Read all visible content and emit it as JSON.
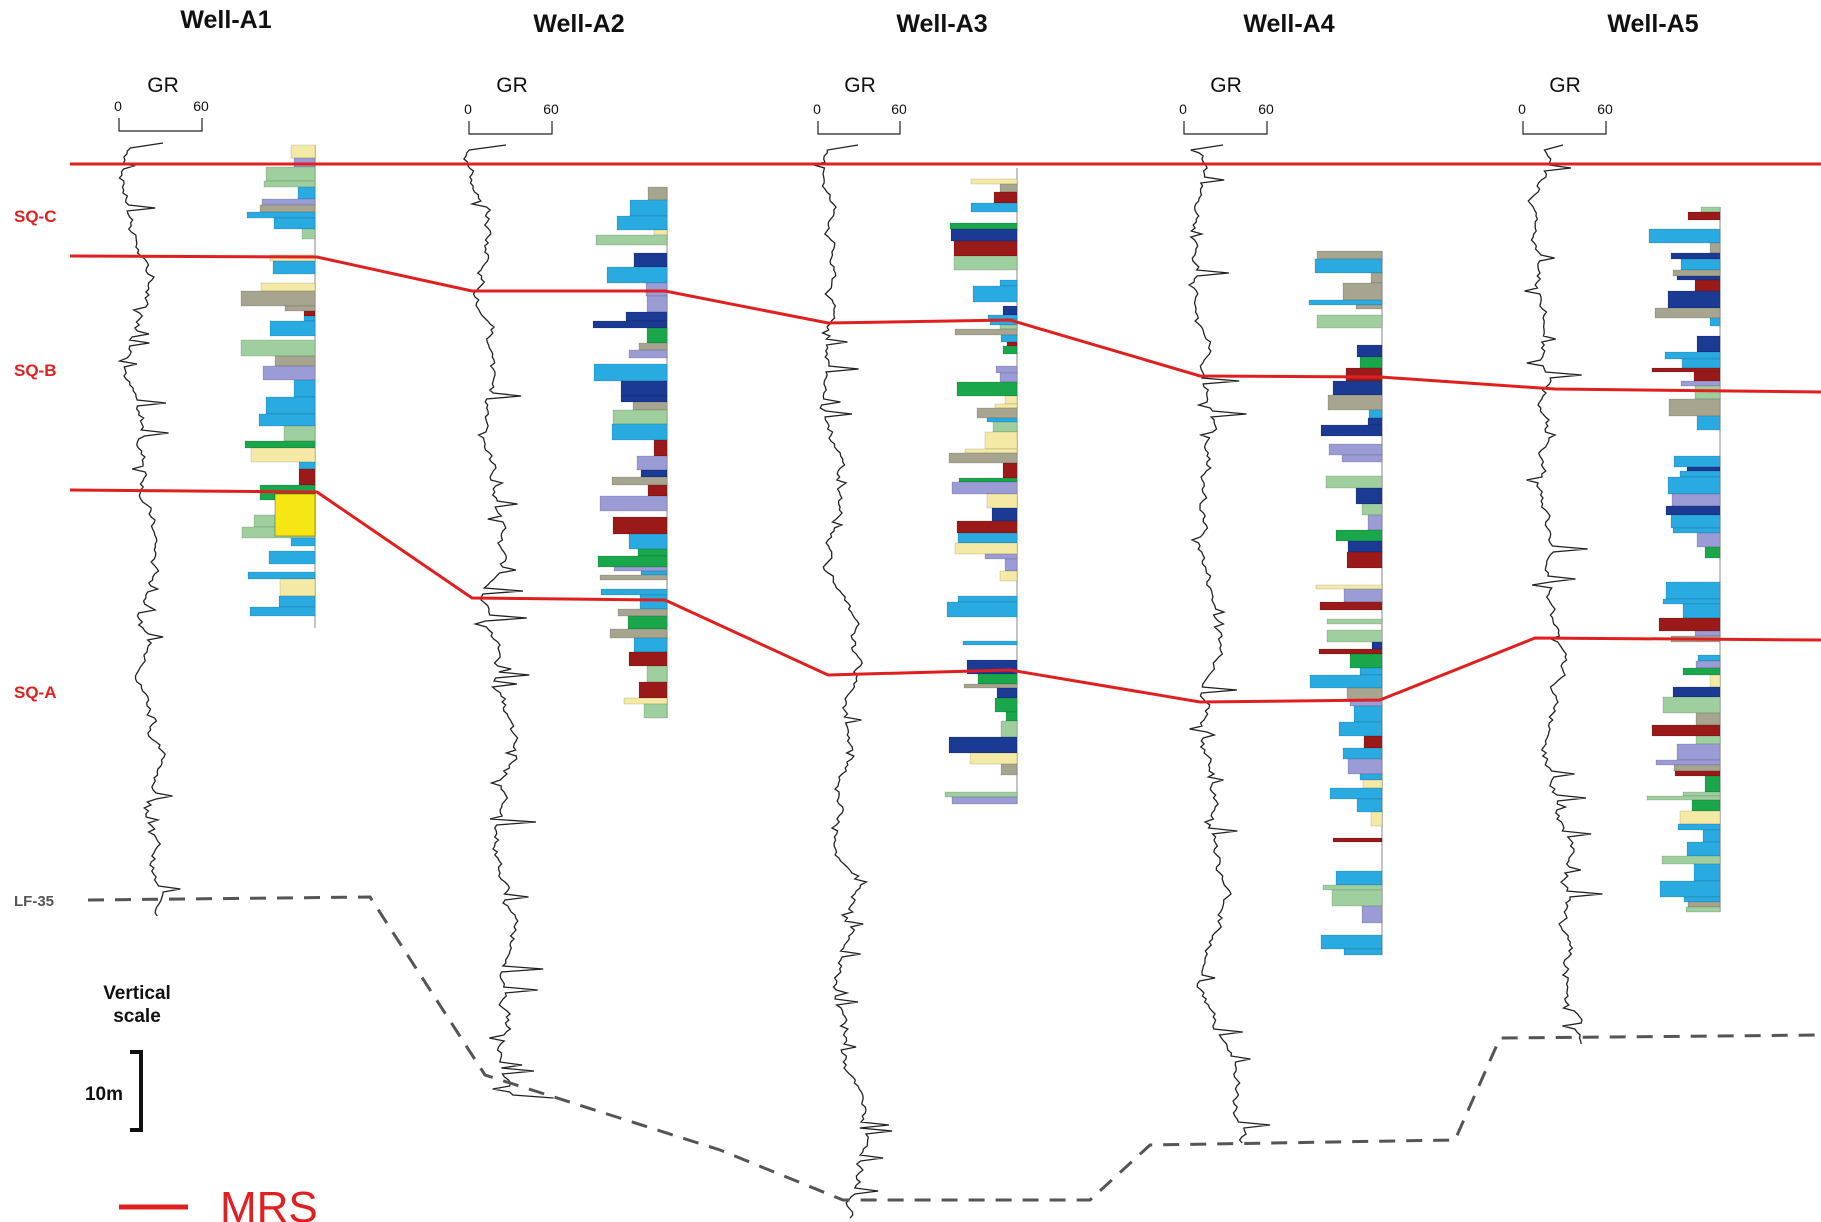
{
  "wells": [
    {
      "name": "Well-A1",
      "log": "GR",
      "scale_min": "0",
      "scale_max": "60"
    },
    {
      "name": "Well-A2",
      "log": "GR",
      "scale_min": "0",
      "scale_max": "60"
    },
    {
      "name": "Well-A3",
      "log": "GR",
      "scale_min": "0",
      "scale_max": "60"
    },
    {
      "name": "Well-A4",
      "log": "GR",
      "scale_min": "0",
      "scale_max": "60"
    },
    {
      "name": "Well-A5",
      "log": "GR",
      "scale_min": "0",
      "scale_max": "60"
    }
  ],
  "sequences": [
    "SQ-C",
    "SQ-B",
    "SQ-A"
  ],
  "datum_label": "LF-35",
  "vertical_scale": {
    "title_line1": "Vertical",
    "title_line2": "scale",
    "value": "10m"
  },
  "legend": {
    "label": "MRS",
    "color": "#e02020"
  },
  "colors": {
    "mrs_line": "#e02020",
    "datum_line": "#555555",
    "facies_blue": "#29abe2",
    "facies_navy": "#1b3a94",
    "facies_lavender": "#9b9bd6",
    "facies_green": "#9fcf9f",
    "facies_grey": "#a7a58f",
    "facies_tan": "#f4eaa6",
    "facies_yellow": "#f5e614",
    "facies_darkred": "#9a1a1a",
    "facies_brightgreen": "#1aa64a"
  }
}
